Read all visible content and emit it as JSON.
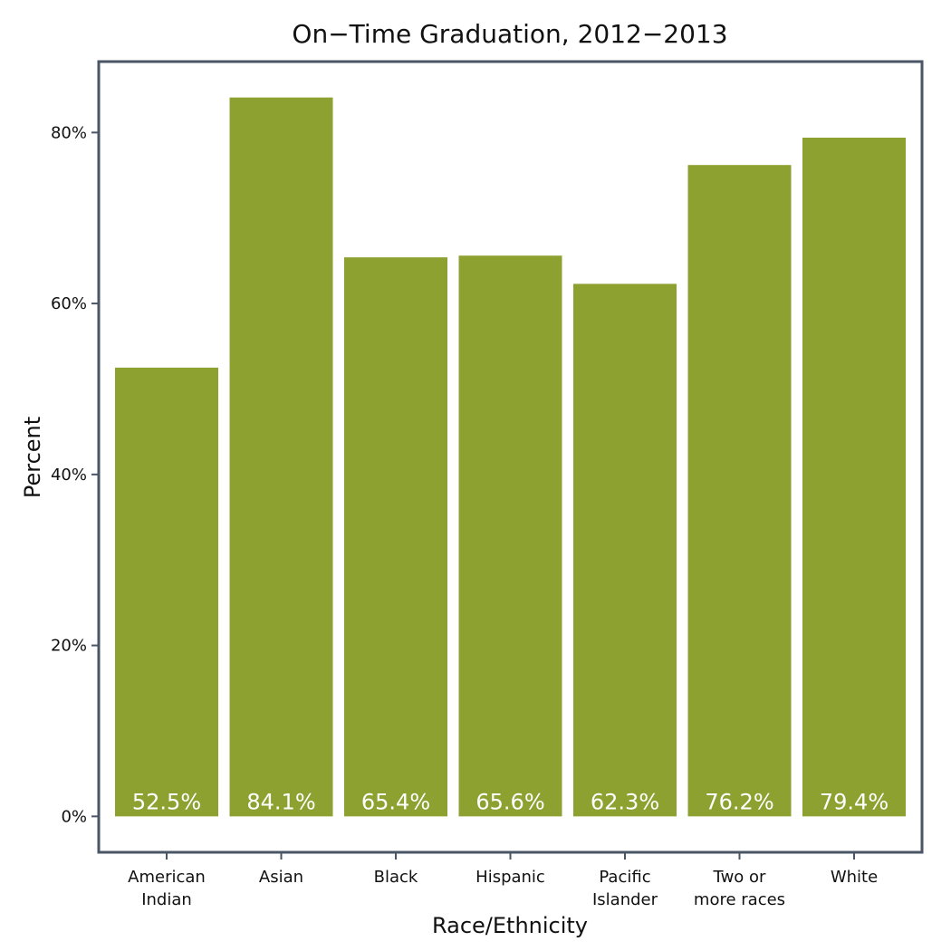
{
  "chart_data": {
    "type": "bar",
    "title": "On−Time Graduation, 2012−2013",
    "xlabel": "Race/Ethnicity",
    "ylabel": "Percent",
    "categories": [
      [
        "American",
        "Indian"
      ],
      [
        "Asian"
      ],
      [
        "Black"
      ],
      [
        "Hispanic"
      ],
      [
        "Pacific",
        "Islander"
      ],
      [
        "Two or",
        "more races"
      ],
      [
        "White"
      ]
    ],
    "values": [
      52.5,
      84.1,
      65.4,
      65.6,
      62.3,
      76.2,
      79.4
    ],
    "data_labels": [
      "52.5%",
      "84.1%",
      "65.4%",
      "65.6%",
      "62.3%",
      "76.2%",
      "79.4%"
    ],
    "yticks": [
      0,
      20,
      40,
      60,
      80
    ],
    "ytick_labels": [
      "0%",
      "20%",
      "40%",
      "60%",
      "80%"
    ],
    "ylim": [
      -4.2,
      88.3
    ],
    "bar_color": "#8da131",
    "frame_color": "#4a5566",
    "grid": false,
    "legend": "none"
  }
}
